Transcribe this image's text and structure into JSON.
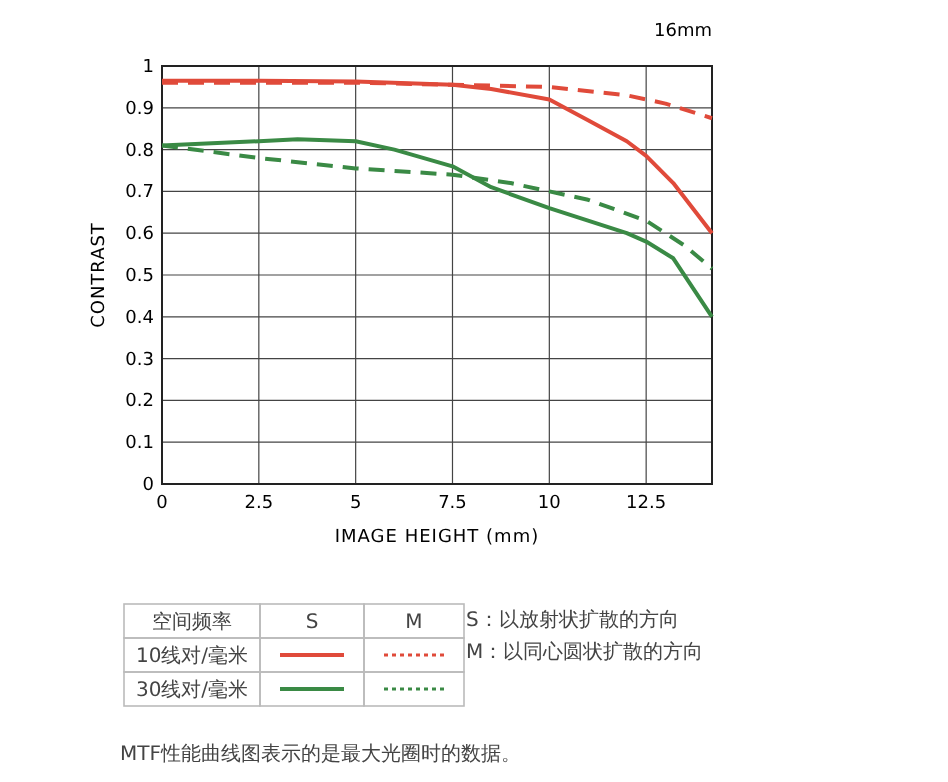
{
  "chart_data": {
    "type": "line",
    "title": "16mm",
    "xlabel": "IMAGE HEIGHT (mm)",
    "ylabel": "CONTRAST",
    "xlim": [
      0,
      14.2
    ],
    "xticks": [
      0,
      2.5,
      5,
      7.5,
      10,
      12.5
    ],
    "ylim": [
      0,
      1
    ],
    "yticks": [
      0,
      0.1,
      0.2,
      0.3,
      0.4,
      0.5,
      0.6,
      0.7,
      0.8,
      0.9,
      1
    ],
    "grid": true,
    "annotations": [
      "空间频率",
      "S",
      "M",
      "10线对/毫米",
      "30线对/毫米",
      "S：以放射状扩散的方向",
      "M：以同心圆状扩散的方向",
      "MTF性能曲线图表示的是最大光圈时的数据。"
    ],
    "series": [
      {
        "color": "#e04a3a",
        "line_style": "solid",
        "x": [
          0,
          2.5,
          5,
          7.5,
          8.5,
          10,
          11,
          12,
          12.5,
          13.2,
          14.2
        ],
        "values": [
          0.965,
          0.965,
          0.963,
          0.955,
          0.945,
          0.92,
          0.87,
          0.82,
          0.785,
          0.72,
          0.6
        ]
      },
      {
        "color": "#e04a3a",
        "line_style": "dashed",
        "x": [
          0,
          5,
          7.5,
          10,
          12,
          13,
          14.2
        ],
        "values": [
          0.96,
          0.96,
          0.955,
          0.95,
          0.93,
          0.91,
          0.875
        ]
      },
      {
        "color": "#3a8a45",
        "line_style": "solid",
        "x": [
          0,
          2.5,
          3.5,
          5,
          6,
          7.5,
          8.5,
          10,
          11,
          12,
          12.5,
          13.2,
          14.2
        ],
        "values": [
          0.81,
          0.82,
          0.825,
          0.82,
          0.8,
          0.76,
          0.71,
          0.66,
          0.63,
          0.6,
          0.58,
          0.54,
          0.4
        ]
      },
      {
        "color": "#3a8a45",
        "line_style": "dashed",
        "x": [
          0,
          2.5,
          5,
          7.5,
          9,
          10,
          11,
          12.5,
          13.5,
          14.2
        ],
        "values": [
          0.81,
          0.78,
          0.755,
          0.74,
          0.72,
          0.7,
          0.68,
          0.63,
          0.57,
          0.515
        ]
      }
    ]
  }
}
